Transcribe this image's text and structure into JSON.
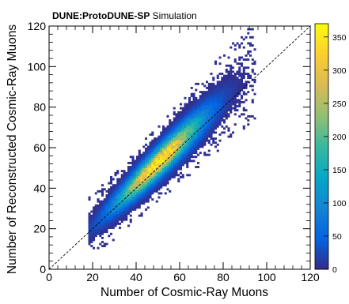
{
  "chart_data": {
    "type": "heatmap",
    "title_bold": "DUNE:ProtoDUNE-SP",
    "title_rest": " Simulation",
    "xlabel": "Number of Cosmic-Ray Muons",
    "ylabel": "Number of Reconstructed Cosmic-Ray Muons",
    "xlim": [
      0,
      120
    ],
    "ylim": [
      0,
      120
    ],
    "xticks": [
      "0",
      "20",
      "40",
      "60",
      "80",
      "100",
      "120"
    ],
    "yticks": [
      "0",
      "20",
      "40",
      "60",
      "80",
      "100",
      "120"
    ],
    "zlim": [
      0,
      370
    ],
    "zticks": [
      "0",
      "50",
      "100",
      "150",
      "200",
      "250",
      "300",
      "350"
    ],
    "reference_line": {
      "style": "dashed",
      "from": [
        0,
        0
      ],
      "to": [
        120,
        120
      ]
    },
    "distribution": {
      "x_range": [
        18,
        94
      ],
      "peak": [
        50,
        52
      ],
      "peak_count": 360,
      "reco_over_true_ratio": 1.04,
      "spread_along_diagonal": 11,
      "spread_across_diagonal": 2.5
    },
    "colormap": [
      "#352a87",
      "#0363e1",
      "#1485d4",
      "#06a7c6",
      "#38b99e",
      "#92bf73",
      "#d9ba56",
      "#fcce2e",
      "#f9fb0e"
    ]
  }
}
